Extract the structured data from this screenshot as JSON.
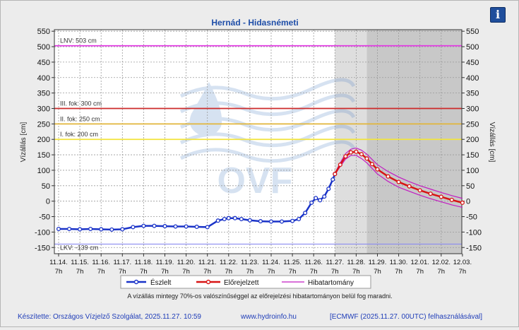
{
  "title": "Hernád - Hidasnémeti",
  "info_icon": "i",
  "chart_data": {
    "type": "line",
    "title": "Hernád - Hidasnémeti",
    "ylabel_left": "Vízállás [cm]",
    "ylabel_right": "Vízállás [cm]",
    "ylim": [
      -170,
      555
    ],
    "yticks": [
      550,
      500,
      450,
      400,
      350,
      300,
      250,
      200,
      150,
      100,
      50,
      0,
      -50,
      -100,
      -150
    ],
    "x_tick_dates": [
      "11.14.",
      "11.15.",
      "11.16.",
      "11.17.",
      "11.18.",
      "11.19.",
      "11.20.",
      "11.21.",
      "11.22.",
      "11.23.",
      "11.24.",
      "11.25.",
      "11.26.",
      "11.27.",
      "11.28.",
      "11.29.",
      "11.30.",
      "12.01.",
      "12.02.",
      "12.03."
    ],
    "x_tick_hour": "7h",
    "grid": true,
    "legend_position": "bottom",
    "reference_lines": [
      {
        "label": "LNV: 503 cm",
        "value": 503,
        "color": "#e23be3"
      },
      {
        "label": "III. fok: 300 cm",
        "value": 300,
        "color": "#cc2a2a"
      },
      {
        "label": "II. fok: 250 cm",
        "value": 250,
        "color": "#e2b63a"
      },
      {
        "label": "I. fok: 200 cm",
        "value": 200,
        "color": "#f2e43a"
      },
      {
        "label": "LKV: -139 cm",
        "value": -139,
        "color": "#8c8cf0"
      }
    ],
    "series": [
      {
        "name": "Észlelt",
        "color": "#1a33c8",
        "x": [
          0,
          0.5,
          1,
          1.5,
          2,
          2.5,
          3,
          3.5,
          4,
          4.5,
          5,
          5.5,
          6,
          6.5,
          7,
          7.5,
          7.8,
          8,
          8.3,
          8.6,
          9,
          9.5,
          10,
          10.5,
          11,
          11.3,
          11.6,
          11.9,
          12.1,
          12.3,
          12.5,
          12.7,
          12.9,
          13
        ],
        "y": [
          -90,
          -90,
          -91,
          -90,
          -91,
          -92,
          -91,
          -84,
          -80,
          -80,
          -81,
          -82,
          -82,
          -83,
          -84,
          -63,
          -58,
          -55,
          -55,
          -58,
          -62,
          -65,
          -66,
          -66,
          -64,
          -58,
          -38,
          -5,
          10,
          3,
          15,
          40,
          70,
          88
        ]
      },
      {
        "name": "Előrejelzett",
        "color": "#d81414",
        "x": [
          13,
          13.25,
          13.5,
          13.75,
          14,
          14.25,
          14.5,
          14.75,
          15,
          15.5,
          16,
          16.5,
          17,
          17.5,
          18,
          18.5,
          19
        ],
        "y": [
          88,
          118,
          145,
          158,
          160,
          152,
          138,
          120,
          103,
          80,
          62,
          48,
          35,
          24,
          14,
          4,
          -5
        ]
      },
      {
        "name": "Hibatartomány",
        "color": "#c21cc2",
        "x": [
          13,
          13.25,
          13.5,
          13.75,
          14,
          14.25,
          14.5,
          14.75,
          15,
          15.5,
          16,
          16.5,
          17,
          17.5,
          18,
          18.5,
          19
        ],
        "upper": [
          90,
          124,
          154,
          168,
          172,
          165,
          152,
          135,
          118,
          96,
          78,
          63,
          50,
          39,
          28,
          18,
          9
        ],
        "lower": [
          86,
          112,
          136,
          148,
          148,
          138,
          124,
          106,
          88,
          64,
          45,
          32,
          19,
          8,
          -2,
          -12,
          -20
        ]
      }
    ],
    "shaded_regions": [
      {
        "from": 13,
        "to": 14.5,
        "color": "#dedede"
      },
      {
        "from": 14.5,
        "to": 19,
        "color": "#c8c8c8"
      }
    ],
    "watermark": "OVF"
  },
  "legend": [
    {
      "label": "Észlelt"
    },
    {
      "label": "Előrejelzett"
    },
    {
      "label": "Hibatartomány"
    }
  ],
  "note": "A vízállás mintegy 70%-os valószínűséggel az előrejelzési hibatartományon belül fog maradni.",
  "footer": {
    "credit": "Készítette: Országos Vízjelző Szolgálat, 2025.11.27. 10:59",
    "url": "www.hydroinfo.hu",
    "source": "[ECMWF (2025.11.27. 00UTC) felhasználásával]"
  }
}
